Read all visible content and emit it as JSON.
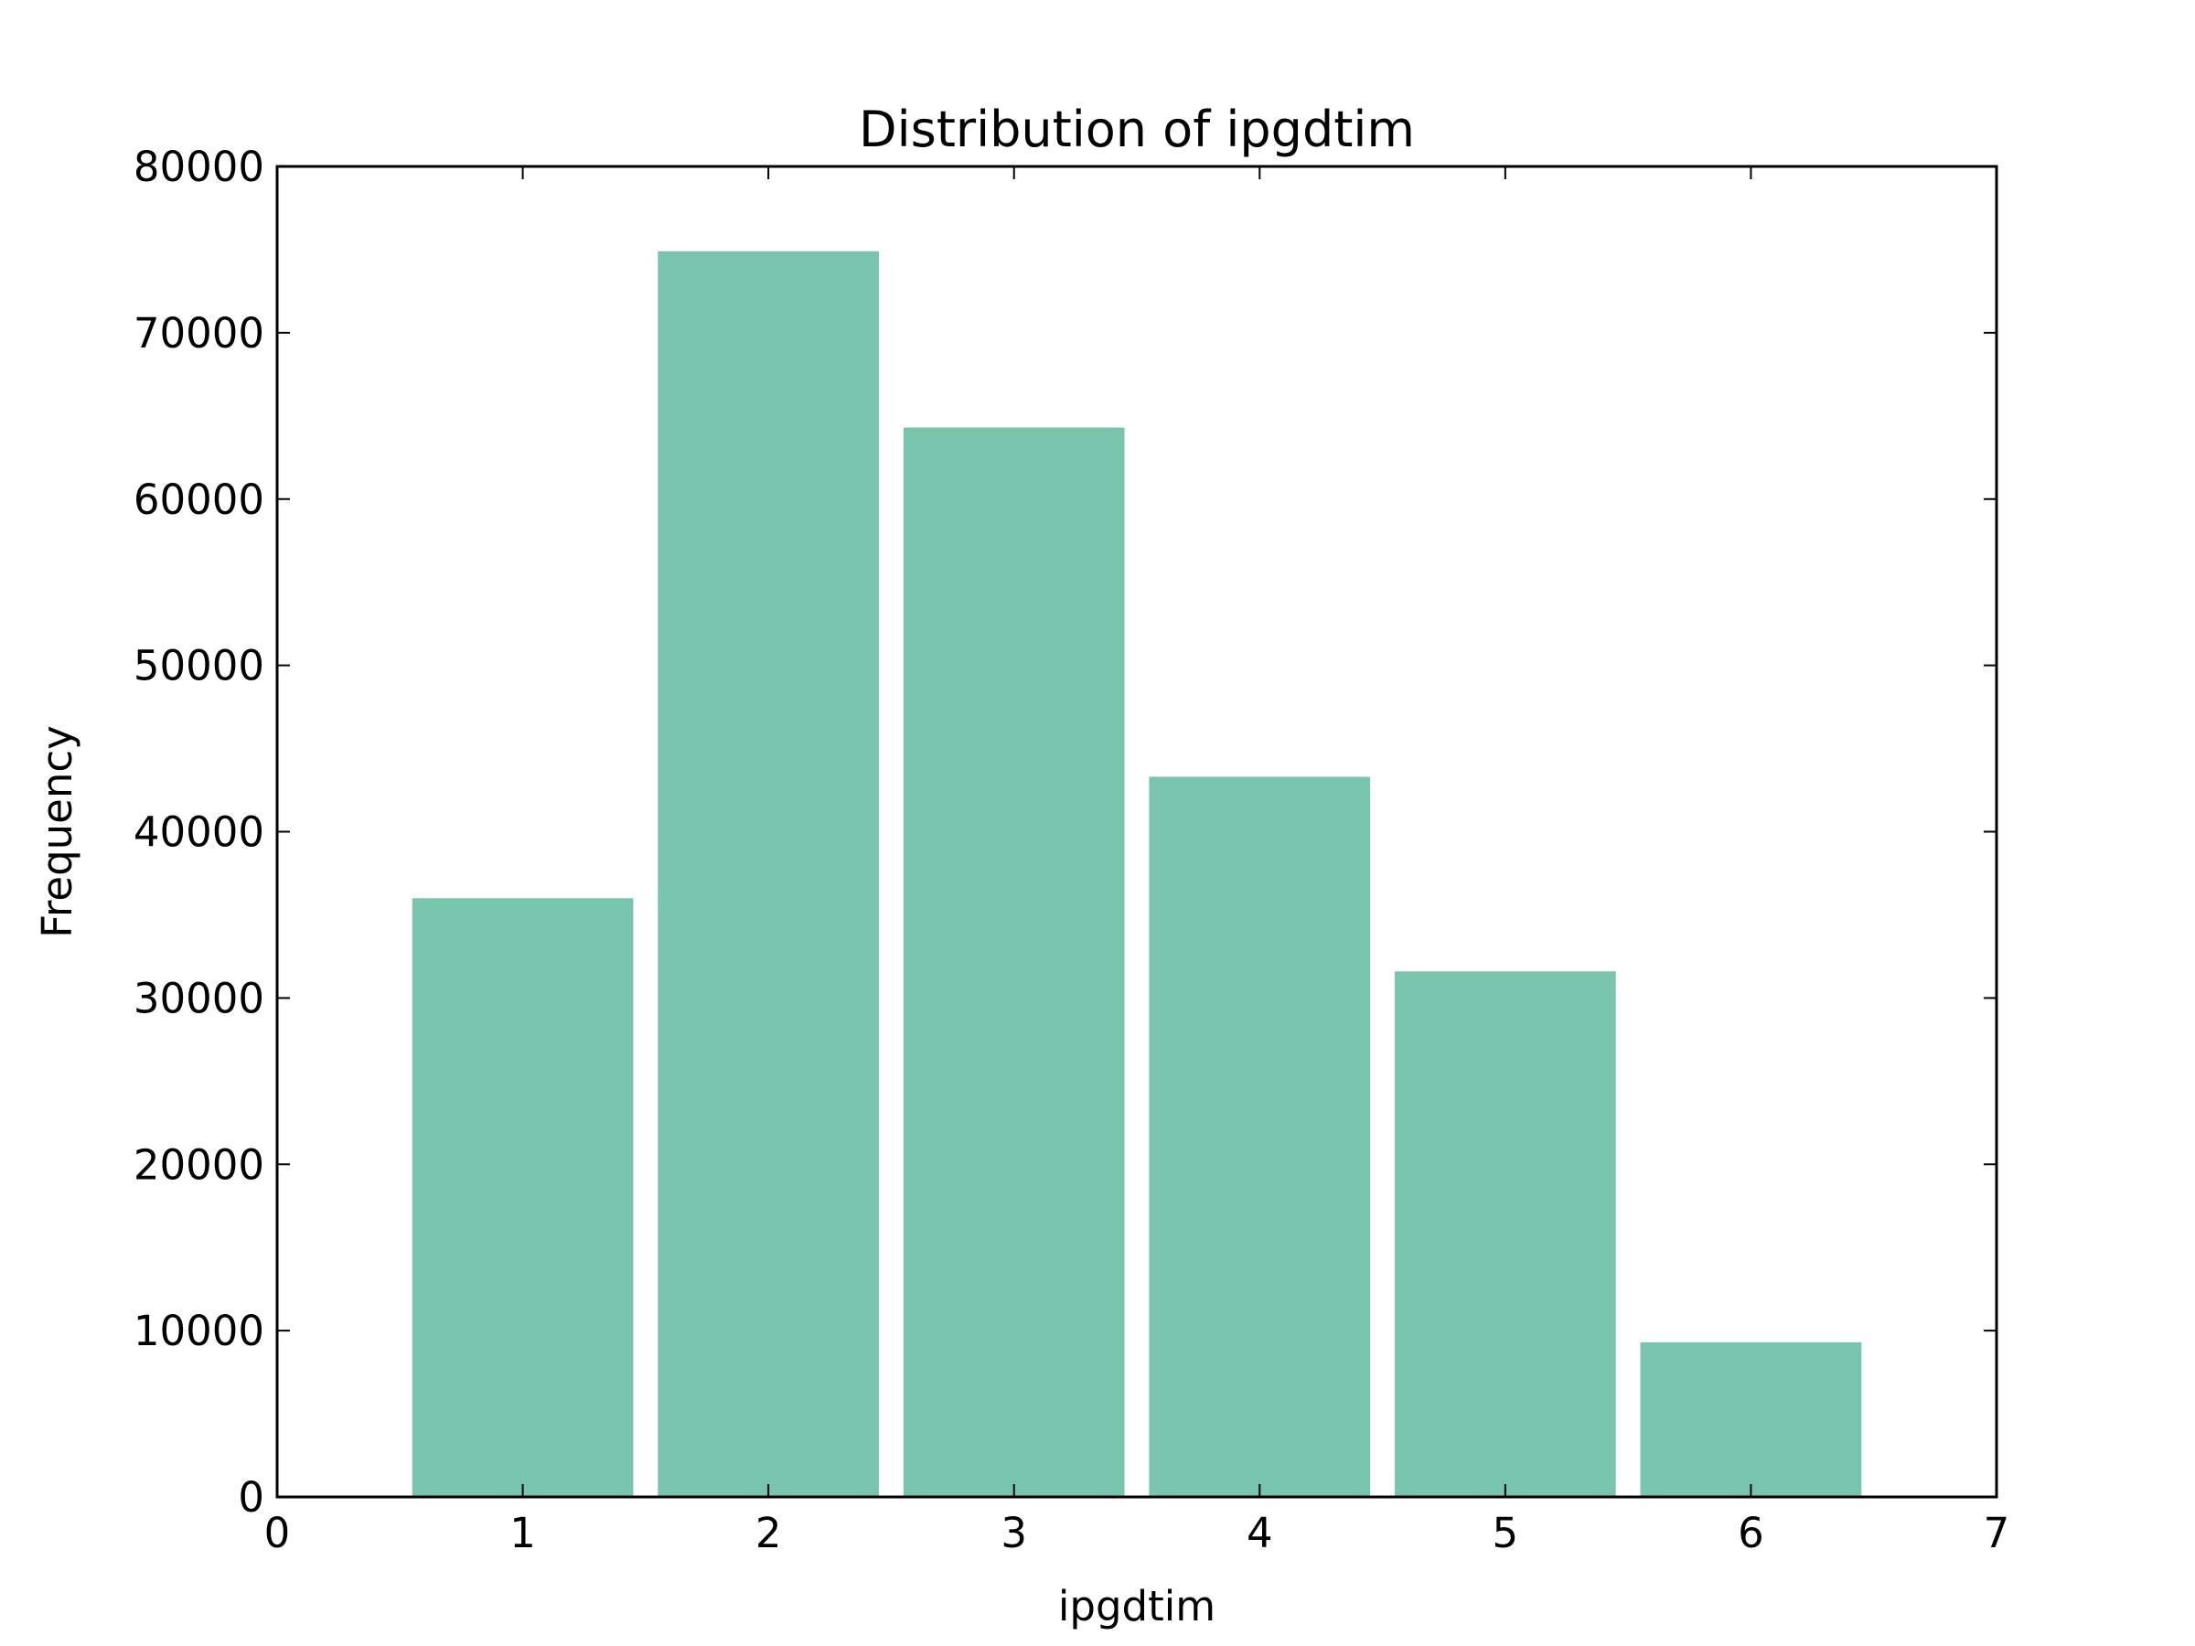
{
  "chart_data": {
    "type": "bar",
    "title": "Distribution of ipgdtim",
    "xlabel": "ipgdtim",
    "ylabel": "Frequency",
    "x": [
      1,
      2,
      3,
      4,
      5,
      6
    ],
    "values": [
      36000,
      74900,
      64300,
      43300,
      31600,
      9300
    ],
    "bar_width": 0.9,
    "xlim": [
      0,
      7
    ],
    "ylim": [
      0,
      80000
    ],
    "xticks": [
      0,
      1,
      2,
      3,
      4,
      5,
      6,
      7
    ],
    "xtick_labels": [
      "0",
      "1",
      "2",
      "3",
      "4",
      "5",
      "6",
      "7"
    ],
    "yticks": [
      0,
      10000,
      20000,
      30000,
      40000,
      50000,
      60000,
      70000,
      80000
    ],
    "ytick_labels": [
      "0",
      "10000",
      "20000",
      "30000",
      "40000",
      "50000",
      "60000",
      "70000",
      "80000"
    ],
    "grid": false,
    "bar_color": "#78c4ad",
    "axis_color": "#000000"
  }
}
